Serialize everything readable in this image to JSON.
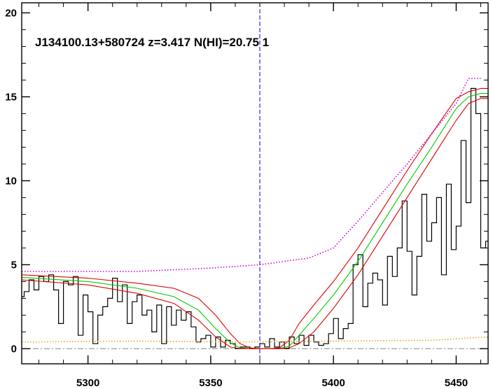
{
  "chart_data": {
    "type": "line",
    "title": "J134100.13+580724 z=3.417 N(HI)=20.75 1",
    "xlabel": "",
    "ylabel": "",
    "xlim": [
      5273,
      5463
    ],
    "ylim": [
      -0.9,
      20.6
    ],
    "xticks": [
      5300,
      5350,
      5400,
      5450
    ],
    "yticks": [
      0,
      5,
      10,
      15,
      20
    ],
    "grid": false,
    "legend": "none",
    "vline": {
      "x": 5370,
      "color": "#0000cc",
      "style": "dashed"
    },
    "hline": {
      "y": 0,
      "color": "#888888",
      "style": "dash-dot"
    },
    "series": [
      {
        "style": "step",
        "color": "#000000",
        "x": [
          5273,
          5274,
          5276,
          5278,
          5280,
          5282,
          5284,
          5286,
          5288,
          5290,
          5292,
          5294,
          5296,
          5298,
          5300,
          5302,
          5304,
          5306,
          5308,
          5310,
          5312,
          5314,
          5316,
          5318,
          5320,
          5322,
          5324,
          5326,
          5328,
          5330,
          5332,
          5334,
          5336,
          5338,
          5340,
          5342,
          5344,
          5346,
          5348,
          5350,
          5352,
          5354,
          5356,
          5358,
          5360,
          5362,
          5364,
          5366,
          5368,
          5370,
          5372,
          5374,
          5376,
          5378,
          5380,
          5382,
          5384,
          5386,
          5388,
          5390,
          5392,
          5394,
          5396,
          5398,
          5400,
          5402,
          5404,
          5406,
          5408,
          5410,
          5412,
          5414,
          5416,
          5418,
          5420,
          5422,
          5424,
          5426,
          5428,
          5430,
          5432,
          5434,
          5436,
          5438,
          5440,
          5442,
          5444,
          5446,
          5448,
          5450,
          5452,
          5454,
          5456,
          5458,
          5460,
          5462
        ],
        "y": [
          3.1,
          3.4,
          4.1,
          3.5,
          4.3,
          4.0,
          4.4,
          3.5,
          1.5,
          4.0,
          3.8,
          4.3,
          0.8,
          3.2,
          2.2,
          0.3,
          2.0,
          2.5,
          3.0,
          4.2,
          2.8,
          3.8,
          1.5,
          2.8,
          3.2,
          2.0,
          2.3,
          1.0,
          2.6,
          0.3,
          2.5,
          1.4,
          2.3,
          1.7,
          2.2,
          1.3,
          0.4,
          0.6,
          0.8,
          0.1,
          0.7,
          0.1,
          0.5,
          0.3,
          0.0,
          0.1,
          0.1,
          0.0,
          0.1,
          0.3,
          0.1,
          0.6,
          0.1,
          0.4,
          0.0,
          0.7,
          0.3,
          0.8,
          0.2,
          0.8,
          0.4,
          0.2,
          0.3,
          0.9,
          1.8,
          0.6,
          1.2,
          1.5,
          5.0,
          5.6,
          2.5,
          3.9,
          4.5,
          4.1,
          2.6,
          5.5,
          4.3,
          6.0,
          8.8,
          5.8,
          3.2,
          5.5,
          9.2,
          6.4,
          7.5,
          9.0,
          4.4,
          9.8,
          5.9,
          7.3,
          12.4,
          8.7,
          15.5,
          14.0,
          6.0,
          6.4
        ]
      },
      {
        "style": "line",
        "color": "#00cc00",
        "x": [
          5273,
          5300,
          5320,
          5335,
          5345,
          5352,
          5358,
          5362,
          5366,
          5370,
          5374,
          5378,
          5382,
          5386,
          5392,
          5400,
          5410,
          5420,
          5430,
          5440,
          5450,
          5455,
          5460,
          5463
        ],
        "y": [
          4.25,
          4.0,
          3.6,
          3.1,
          2.3,
          1.2,
          0.35,
          0.05,
          0.0,
          0.0,
          0.0,
          0.02,
          0.15,
          0.8,
          1.8,
          3.2,
          5.2,
          7.5,
          9.8,
          12.0,
          14.3,
          15.0,
          15.2,
          15.2
        ]
      },
      {
        "style": "line",
        "color": "#dd0000",
        "x": [
          5273,
          5300,
          5320,
          5335,
          5345,
          5352,
          5358,
          5362,
          5366,
          5370,
          5374,
          5378,
          5382,
          5386,
          5392,
          5400,
          5410,
          5420,
          5430,
          5440,
          5450,
          5455,
          5460,
          5463
        ],
        "y": [
          4.4,
          4.2,
          3.9,
          3.6,
          3.0,
          2.0,
          0.9,
          0.3,
          0.05,
          0.0,
          0.0,
          0.05,
          0.5,
          1.5,
          2.6,
          4.0,
          6.0,
          8.3,
          10.6,
          12.8,
          14.9,
          15.3,
          15.5,
          15.5
        ]
      },
      {
        "style": "line",
        "color": "#dd0000",
        "x": [
          5273,
          5300,
          5320,
          5335,
          5345,
          5352,
          5358,
          5362,
          5366,
          5370,
          5374,
          5378,
          5382,
          5386,
          5392,
          5400,
          5410,
          5420,
          5430,
          5440,
          5450,
          5455,
          5460,
          5463
        ],
        "y": [
          4.1,
          3.8,
          3.3,
          2.7,
          1.7,
          0.7,
          0.1,
          0.0,
          0.0,
          0.0,
          0.0,
          0.0,
          0.05,
          0.3,
          1.0,
          2.4,
          4.4,
          6.7,
          9.0,
          11.3,
          13.6,
          14.6,
          14.9,
          14.9
        ]
      },
      {
        "style": "dotted",
        "color": "#cc00cc",
        "x": [
          5273,
          5320,
          5350,
          5370,
          5390,
          5400,
          5410,
          5420,
          5430,
          5440,
          5450,
          5455,
          5460
        ],
        "y": [
          4.6,
          4.6,
          4.8,
          5.0,
          5.4,
          6.0,
          7.6,
          9.3,
          11.0,
          12.8,
          14.6,
          16.1,
          16.1
        ]
      },
      {
        "style": "dotted",
        "color": "#e8a030",
        "x": [
          5273,
          5320,
          5360,
          5400,
          5440,
          5463
        ],
        "y": [
          0.4,
          0.45,
          0.4,
          0.45,
          0.5,
          0.7
        ]
      }
    ]
  }
}
